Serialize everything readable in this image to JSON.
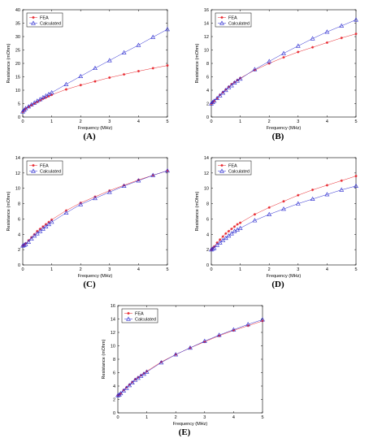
{
  "colors": {
    "fea": "#e8232a",
    "calc": "#2a2ad0"
  },
  "chart_data": [
    {
      "type": "line",
      "label": "(A)",
      "xlabel": "Frequency (MHz)",
      "ylabel": "Resistance (mOhm)",
      "xlim": [
        0,
        5
      ],
      "ylim": [
        0,
        40
      ],
      "xticks": [
        0,
        1,
        2,
        3,
        4,
        5
      ],
      "yticks": [
        0,
        5,
        10,
        15,
        20,
        25,
        30,
        35,
        40
      ],
      "legend": "top-left",
      "series": [
        {
          "name": "FEA",
          "marker": "star",
          "x": [
            0,
            0.05,
            0.1,
            0.2,
            0.3,
            0.4,
            0.5,
            0.6,
            0.7,
            0.8,
            0.9,
            1,
            1.5,
            2,
            2.5,
            3,
            3.5,
            4,
            4.5,
            5
          ],
          "y": [
            2,
            2.6,
            3.1,
            3.8,
            4.4,
            5.0,
            5.6,
            6.2,
            6.8,
            7.3,
            7.8,
            8.3,
            10.3,
            11.9,
            13.3,
            14.7,
            15.9,
            17.1,
            18.2,
            19.2
          ]
        },
        {
          "name": "Calculated",
          "marker": "triangle",
          "x": [
            0,
            0.05,
            0.1,
            0.2,
            0.3,
            0.4,
            0.5,
            0.6,
            0.7,
            0.8,
            0.9,
            1,
            1.5,
            2,
            2.5,
            3,
            3.5,
            4,
            4.5,
            5
          ],
          "y": [
            2,
            2.6,
            3.2,
            3.9,
            4.6,
            5.3,
            6.0,
            6.6,
            7.3,
            7.9,
            8.5,
            9.1,
            12.2,
            15.2,
            18.2,
            21.1,
            24.0,
            26.8,
            29.8,
            32.7
          ]
        }
      ]
    },
    {
      "type": "line",
      "label": "(B)",
      "xlabel": "Frequency (MHz)",
      "ylabel": "Resistance (mOhm)",
      "xlim": [
        0,
        5
      ],
      "ylim": [
        0,
        16
      ],
      "xticks": [
        0,
        1,
        2,
        3,
        4,
        5
      ],
      "yticks": [
        0,
        2,
        4,
        6,
        8,
        10,
        12,
        14,
        16
      ],
      "legend": "top-left",
      "series": [
        {
          "name": "FEA",
          "marker": "star",
          "x": [
            0,
            0.05,
            0.1,
            0.2,
            0.3,
            0.4,
            0.5,
            0.6,
            0.7,
            0.8,
            0.9,
            1,
            1.5,
            2,
            2.5,
            3,
            3.5,
            4,
            4.5,
            5
          ],
          "y": [
            2.0,
            2.2,
            2.4,
            2.8,
            3.3,
            3.7,
            4.1,
            4.5,
            4.9,
            5.2,
            5.5,
            5.8,
            7.0,
            8.0,
            8.9,
            9.7,
            10.4,
            11.1,
            11.8,
            12.4
          ]
        },
        {
          "name": "Calculated",
          "marker": "triangle",
          "x": [
            0,
            0.05,
            0.1,
            0.2,
            0.3,
            0.4,
            0.5,
            0.6,
            0.7,
            0.8,
            0.9,
            1,
            1.5,
            2,
            2.5,
            3,
            3.5,
            4,
            4.5,
            5
          ],
          "y": [
            2.0,
            2.2,
            2.4,
            2.8,
            3.2,
            3.6,
            4.0,
            4.4,
            4.7,
            5.1,
            5.4,
            5.7,
            7.1,
            8.3,
            9.5,
            10.6,
            11.7,
            12.7,
            13.6,
            14.5
          ]
        }
      ]
    },
    {
      "type": "line",
      "label": "(C)",
      "xlabel": "Frequency (MHz)",
      "ylabel": "Resistance (mOhm)",
      "xlim": [
        0,
        5
      ],
      "ylim": [
        0,
        14
      ],
      "xticks": [
        0,
        1,
        2,
        3,
        4,
        5
      ],
      "yticks": [
        0,
        2,
        4,
        6,
        8,
        10,
        12,
        14
      ],
      "legend": "top-left",
      "series": [
        {
          "name": "FEA",
          "marker": "star",
          "x": [
            0,
            0.05,
            0.1,
            0.2,
            0.3,
            0.4,
            0.5,
            0.6,
            0.7,
            0.8,
            0.9,
            1,
            1.5,
            2,
            2.5,
            3,
            3.5,
            4,
            4.5,
            5
          ],
          "y": [
            2.5,
            2.6,
            2.8,
            3.2,
            3.6,
            4.0,
            4.4,
            4.7,
            5.0,
            5.3,
            5.6,
            5.9,
            7.1,
            8.1,
            8.9,
            9.7,
            10.4,
            11.1,
            11.7,
            12.3
          ]
        },
        {
          "name": "Calculated",
          "marker": "triangle",
          "x": [
            0,
            0.05,
            0.1,
            0.2,
            0.3,
            0.4,
            0.5,
            0.6,
            0.7,
            0.8,
            0.9,
            1,
            1.5,
            2,
            2.5,
            3,
            3.5,
            4,
            4.5,
            5
          ],
          "y": [
            2.5,
            2.6,
            2.7,
            3.0,
            3.4,
            3.8,
            4.1,
            4.4,
            4.7,
            5.0,
            5.3,
            5.6,
            6.8,
            7.9,
            8.7,
            9.5,
            10.3,
            11.0,
            11.7,
            12.3
          ]
        }
      ]
    },
    {
      "type": "line",
      "label": "(D)",
      "xlabel": "Frequency (MHz)",
      "ylabel": "Resistance (mOhm)",
      "xlim": [
        0,
        5
      ],
      "ylim": [
        0,
        14
      ],
      "xticks": [
        0,
        1,
        2,
        3,
        4,
        5
      ],
      "yticks": [
        0,
        2,
        4,
        6,
        8,
        10,
        12,
        14
      ],
      "legend": "top-left",
      "series": [
        {
          "name": "FEA",
          "marker": "star",
          "x": [
            0,
            0.05,
            0.1,
            0.2,
            0.3,
            0.4,
            0.5,
            0.6,
            0.7,
            0.8,
            0.9,
            1,
            1.5,
            2,
            2.5,
            3,
            3.5,
            4,
            4.5,
            5
          ],
          "y": [
            2.0,
            2.2,
            2.4,
            2.9,
            3.3,
            3.7,
            4.1,
            4.4,
            4.7,
            5.0,
            5.3,
            5.5,
            6.6,
            7.5,
            8.3,
            9.1,
            9.8,
            10.4,
            11.0,
            11.6
          ]
        },
        {
          "name": "Calculated",
          "marker": "triangle",
          "x": [
            0,
            0.05,
            0.1,
            0.2,
            0.3,
            0.4,
            0.5,
            0.6,
            0.7,
            0.8,
            0.9,
            1,
            1.5,
            2,
            2.5,
            3,
            3.5,
            4,
            4.5,
            5
          ],
          "y": [
            2.0,
            2.1,
            2.2,
            2.6,
            2.9,
            3.2,
            3.5,
            3.8,
            4.1,
            4.4,
            4.6,
            4.8,
            5.8,
            6.6,
            7.3,
            8.0,
            8.6,
            9.2,
            9.8,
            10.3
          ]
        }
      ]
    },
    {
      "type": "line",
      "label": "(E)",
      "xlabel": "Frequency (MHz)",
      "ylabel": "Resistance (mOhm)",
      "xlim": [
        0,
        5
      ],
      "ylim": [
        0,
        16
      ],
      "xticks": [
        0,
        1,
        2,
        3,
        4,
        5
      ],
      "yticks": [
        0,
        2,
        4,
        6,
        8,
        10,
        12,
        14,
        16
      ],
      "legend": "top-left",
      "series": [
        {
          "name": "FEA",
          "marker": "star",
          "x": [
            0,
            0.05,
            0.1,
            0.2,
            0.3,
            0.4,
            0.5,
            0.6,
            0.7,
            0.8,
            0.9,
            1,
            1.5,
            2,
            2.5,
            3,
            3.5,
            4,
            4.5,
            5
          ],
          "y": [
            2.6,
            2.7,
            2.9,
            3.4,
            3.8,
            4.2,
            4.6,
            5.0,
            5.3,
            5.6,
            5.9,
            6.2,
            7.6,
            8.7,
            9.7,
            10.6,
            11.5,
            12.3,
            13.0,
            13.7
          ]
        },
        {
          "name": "Calculated",
          "marker": "triangle",
          "x": [
            0,
            0.05,
            0.1,
            0.2,
            0.3,
            0.4,
            0.5,
            0.6,
            0.7,
            0.8,
            0.9,
            1,
            1.5,
            2,
            2.5,
            3,
            3.5,
            4,
            4.5,
            5
          ],
          "y": [
            2.6,
            2.7,
            2.9,
            3.3,
            3.7,
            4.1,
            4.5,
            4.9,
            5.2,
            5.5,
            5.8,
            6.1,
            7.5,
            8.7,
            9.7,
            10.7,
            11.6,
            12.4,
            13.2,
            13.9
          ]
        }
      ]
    }
  ]
}
